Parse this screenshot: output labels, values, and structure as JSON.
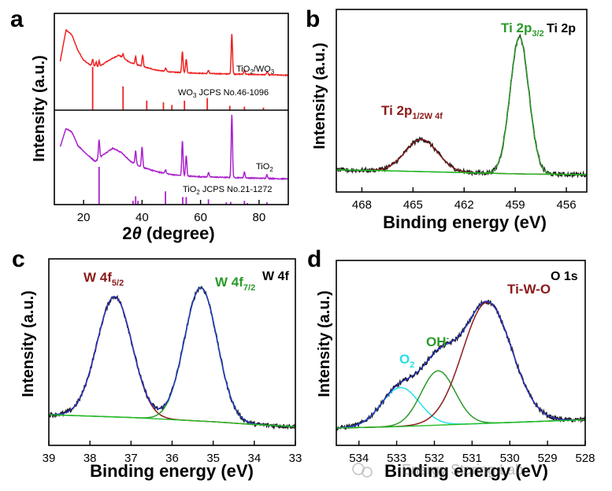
{
  "chart_data": [
    {
      "panel": "a",
      "type": "line",
      "xlabel": "2θ (degree)",
      "ylabel": "Intensity (a.u.)",
      "xlim": [
        10,
        90
      ],
      "xticks": [
        20,
        40,
        60,
        80
      ],
      "series": [
        {
          "name": "TiO2/WO3",
          "color": "#ee2222",
          "base": [
            [
              12,
              0.3
            ],
            [
              14,
              0.8
            ],
            [
              16,
              0.72
            ],
            [
              18,
              0.48
            ],
            [
              20,
              0.32
            ],
            [
              22,
              0.25
            ],
            [
              25,
              0.2
            ],
            [
              28,
              0.3
            ],
            [
              32,
              0.4
            ],
            [
              36,
              0.28
            ],
            [
              40,
              0.22
            ],
            [
              45,
              0.16
            ],
            [
              50,
              0.13
            ],
            [
              55,
              0.12
            ],
            [
              60,
              0.11
            ],
            [
              70,
              0.1
            ],
            [
              80,
              0.09
            ],
            [
              90,
              0.08
            ]
          ],
          "peaks": [
            [
              23.1,
              0.1
            ],
            [
              24.3,
              0.08
            ],
            [
              25.3,
              0.1
            ],
            [
              33.5,
              0.06
            ],
            [
              37.8,
              0.12
            ],
            [
              40.2,
              0.18
            ],
            [
              48.1,
              0.05
            ],
            [
              53.8,
              0.34
            ],
            [
              55.1,
              0.22
            ],
            [
              62.7,
              0.05
            ],
            [
              70.7,
              0.64
            ],
            [
              75.0,
              0.07
            ],
            [
              82.8,
              0.05
            ]
          ]
        },
        {
          "name": "TiO2",
          "color": "#aa22cc",
          "base": [
            [
              12,
              0.5
            ],
            [
              14,
              0.75
            ],
            [
              16,
              0.7
            ],
            [
              18,
              0.52
            ],
            [
              21,
              0.4
            ],
            [
              24,
              0.3
            ],
            [
              27,
              0.4
            ],
            [
              30,
              0.48
            ],
            [
              33,
              0.42
            ],
            [
              36,
              0.3
            ],
            [
              40,
              0.22
            ],
            [
              45,
              0.16
            ],
            [
              50,
              0.12
            ],
            [
              55,
              0.1
            ],
            [
              60,
              0.09
            ],
            [
              70,
              0.08
            ],
            [
              80,
              0.07
            ],
            [
              90,
              0.06
            ]
          ],
          "peaks": [
            [
              25.3,
              0.25
            ],
            [
              37.8,
              0.18
            ],
            [
              40.0,
              0.28
            ],
            [
              48.0,
              0.05
            ],
            [
              53.8,
              0.48
            ],
            [
              55.1,
              0.28
            ],
            [
              62.7,
              0.06
            ],
            [
              70.7,
              0.86
            ],
            [
              75.0,
              0.08
            ],
            [
              82.7,
              0.05
            ]
          ]
        }
      ],
      "reference_bars": [
        {
          "name": "WO3 JCPS No.46-1096",
          "color": "#ee2222",
          "positions": [
            23.1,
            33.5,
            41.6,
            47.3,
            50.2,
            54.5,
            62.3,
            70.0,
            75.0,
            81.5
          ],
          "heights": [
            1.0,
            0.55,
            0.22,
            0.18,
            0.12,
            0.22,
            0.28,
            0.1,
            0.08,
            0.06
          ]
        },
        {
          "name": "TiO2 JCPS No.21-1272",
          "color": "#aa22cc",
          "positions": [
            25.3,
            36.9,
            37.8,
            38.6,
            48.0,
            53.9,
            55.1,
            62.7,
            68.8,
            70.3,
            75.0,
            76.0,
            82.7
          ],
          "heights": [
            1.0,
            0.1,
            0.22,
            0.1,
            0.35,
            0.2,
            0.2,
            0.14,
            0.06,
            0.07,
            0.1,
            0.04,
            0.06
          ]
        }
      ],
      "series_labels": [
        "TiO2/WO3",
        "TiO2"
      ]
    },
    {
      "panel": "b",
      "type": "line",
      "xlabel": "Binding energy (eV)",
      "ylabel": "Intensity (a.u.)",
      "xlim": [
        469.5,
        454.8
      ],
      "xticks": [
        468,
        465,
        462,
        459,
        456
      ],
      "ylim": [
        0,
        1.08
      ],
      "title_tag": "Ti 2p",
      "baseline": [
        [
          469.5,
          0.035
        ],
        [
          467,
          0.03
        ],
        [
          463,
          0.018
        ],
        [
          461,
          0.012
        ],
        [
          460,
          0.009
        ],
        [
          458,
          0.004
        ],
        [
          456,
          0.002
        ],
        [
          454.8,
          0.0
        ]
      ],
      "components": [
        {
          "name": "Ti 2p1/2",
          "center": 464.5,
          "amp": 0.235,
          "sigma": 0.95,
          "color": "#8b1a1a"
        },
        {
          "name": "Ti 2p3/2",
          "center": 458.75,
          "amp": 1.0,
          "sigma": 0.55,
          "color": "#2a9a2a"
        }
      ],
      "labels": [
        "Ti 2p",
        "1/2",
        "W 4f",
        "Ti 2p",
        "3/2"
      ]
    },
    {
      "panel": "c",
      "type": "line",
      "xlabel": "Binding energy (eV)",
      "ylabel": "Intensity (a.u.)",
      "xlim": [
        39.0,
        33.0
      ],
      "xticks": [
        39,
        38,
        37,
        36,
        35,
        34,
        33
      ],
      "ylim": [
        0,
        1.08
      ],
      "title_tag": "W 4f",
      "baseline": [
        [
          39,
          0.095
        ],
        [
          38,
          0.085
        ],
        [
          37,
          0.075
        ],
        [
          36,
          0.06
        ],
        [
          35,
          0.045
        ],
        [
          34,
          0.025
        ],
        [
          33,
          0.01
        ]
      ],
      "components": [
        {
          "name": "W 4f5/2",
          "center": 37.4,
          "amp": 0.855,
          "sigma": 0.43,
          "color": "#8b1a1a"
        },
        {
          "name": "W 4f7/2",
          "center": 35.3,
          "amp": 0.95,
          "sigma": 0.4,
          "color": "#2a9a2a"
        }
      ],
      "labels": [
        "W 4f",
        "5/2",
        "W 4f",
        "7/2"
      ]
    },
    {
      "panel": "d",
      "type": "line",
      "xlabel": "Binding energy (eV)",
      "ylabel": "Intensity (a.u.)",
      "xlim": [
        534.6,
        528.0
      ],
      "xticks": [
        534,
        533,
        532,
        531,
        530,
        529,
        528
      ],
      "ylim": [
        0,
        1.08
      ],
      "title_tag": "O 1s",
      "baseline": [
        [
          534.6,
          0.0
        ],
        [
          533,
          0.01
        ],
        [
          532,
          0.02
        ],
        [
          531,
          0.03
        ],
        [
          530,
          0.04
        ],
        [
          529,
          0.05
        ],
        [
          528,
          0.06
        ]
      ],
      "components": [
        {
          "name": "O2",
          "center": 532.9,
          "amp": 0.28,
          "sigma": 0.5,
          "color": "#22e0e8"
        },
        {
          "name": "OH-",
          "center": 531.9,
          "amp": 0.39,
          "sigma": 0.45,
          "color": "#2a9a2a"
        },
        {
          "name": "Ti-W-O",
          "center": 530.6,
          "amp": 0.87,
          "sigma": 0.65,
          "color": "#8b1a1a"
        }
      ],
      "labels": [
        "Ti-W-O",
        "OH",
        "O",
        "2"
      ]
    }
  ],
  "panel_letters": [
    "a",
    "b",
    "c",
    "d"
  ],
  "panel_a": {
    "tio2wo3_label": "TiO",
    "tio2wo3_sub": "2",
    "tio2wo3_slash": "/WO",
    "tio2wo3_sub2": "3",
    "wo3_ref": "WO",
    "wo3_ref_sub": "3",
    "wo3_ref_rest": " JCPS No.46-1096",
    "tio2_label": "TiO",
    "tio2_sub": "2",
    "tio2_ref": "TiO",
    "tio2_ref_sub": "2",
    "tio2_ref_rest": " JCPS No.21-1272",
    "xlabel_num": "2",
    "xlabel_theta": "θ",
    "xlabel_rest": " (degree)"
  },
  "axis_titles": {
    "ylabel": "Intensity (a.u.)",
    "xlabel": "Binding energy (eV)"
  },
  "tags": {
    "b": "Ti 2p",
    "c": "W 4f",
    "d": "O 1s"
  },
  "peak_labels": {
    "b_left_main": "Ti 2p",
    "b_left_sub": "1/2",
    "b_left_sub2": "W 4f",
    "b_right_main": "Ti 2p",
    "b_right_sub": "3/2",
    "c_left_main": "W 4f",
    "c_left_sub": "5/2",
    "c_right_main": "W 4f",
    "c_right_sub": "7/2",
    "d_tiwo": "Ti-W-O",
    "d_oh": "OH",
    "d_oh_sup": "-",
    "d_o2": "O",
    "d_o2_sub": "2"
  },
  "colors": {
    "measured": "#1a1a1a",
    "envelope": "#2233cc",
    "baseline": "#22bb22",
    "red": "#ee2222",
    "purple": "#aa22cc",
    "maroon": "#8b1a1a",
    "green": "#2a9a2a",
    "cyan": "#22e0e8"
  },
  "watermark": "Energy Storing Lab"
}
